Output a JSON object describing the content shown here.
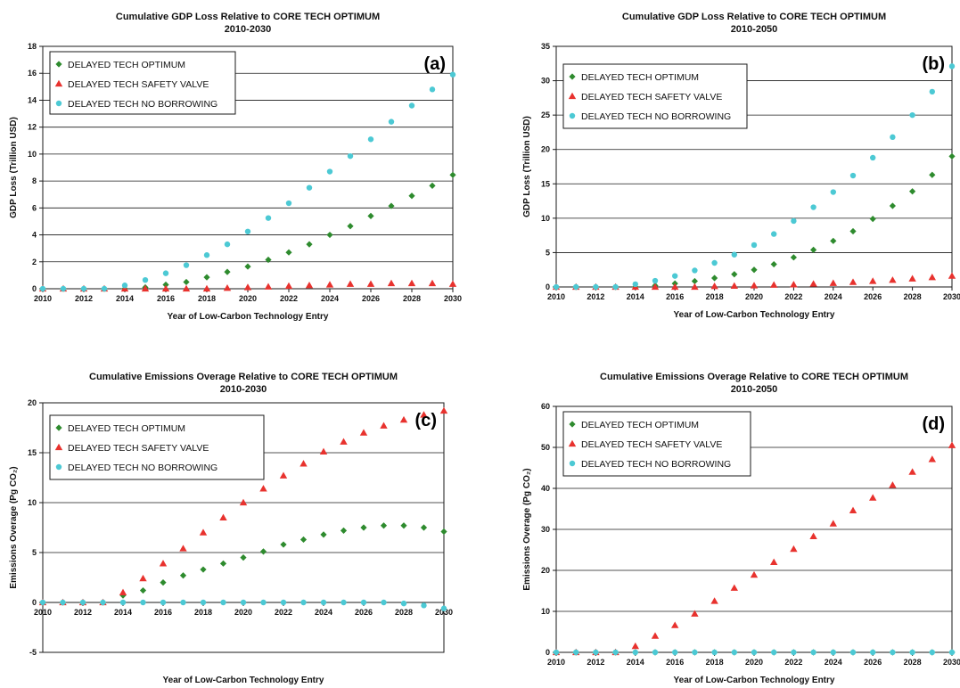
{
  "chart_data": [
    {
      "type": "scatter",
      "title": "Cumulative GDP Loss Relative to CORE TECH OPTIMUM",
      "subtitle": "2010-2030",
      "panel_label": "(a)",
      "xlabel": "Year of Low-Carbon Technology Entry",
      "ylabel": "GDP Loss (Trillion USD)",
      "xlim": [
        2010,
        2030
      ],
      "ylim": [
        0,
        18
      ],
      "xticks": [
        2010,
        2012,
        2014,
        2016,
        2018,
        2020,
        2022,
        2024,
        2026,
        2028,
        2030
      ],
      "yticks": [
        0,
        2,
        4,
        6,
        8,
        10,
        12,
        14,
        16,
        18
      ],
      "grid": "horizontal",
      "legend_position": "top-left",
      "x": [
        2010,
        2011,
        2012,
        2013,
        2014,
        2015,
        2016,
        2017,
        2018,
        2019,
        2020,
        2021,
        2022,
        2023,
        2024,
        2025,
        2026,
        2027,
        2028,
        2029,
        2030
      ],
      "series": [
        {
          "name": "DELAYED TECH OPTIMUM",
          "marker": "diamond",
          "color": "#2e8b2e",
          "values": [
            0,
            0,
            0,
            0,
            0,
            0.1,
            0.3,
            0.5,
            0.85,
            1.25,
            1.65,
            2.15,
            2.7,
            3.3,
            4.0,
            4.65,
            5.4,
            6.15,
            6.9,
            7.65,
            8.45
          ]
        },
        {
          "name": "DELAYED TECH SAFETY VALVE",
          "marker": "triangle",
          "color": "#e8322e",
          "values": [
            0,
            0,
            0,
            0,
            0,
            0,
            0,
            0,
            0,
            0.05,
            0.1,
            0.15,
            0.2,
            0.25,
            0.3,
            0.35,
            0.35,
            0.4,
            0.4,
            0.4,
            0.35
          ]
        },
        {
          "name": "DELAYED TECH NO BORROWING",
          "marker": "circle",
          "color": "#4cc9d4",
          "values": [
            0,
            0,
            0,
            0,
            0.25,
            0.65,
            1.15,
            1.75,
            2.5,
            3.3,
            4.25,
            5.25,
            6.35,
            7.5,
            8.7,
            9.85,
            11.1,
            12.4,
            13.6,
            14.8,
            15.9
          ]
        }
      ]
    },
    {
      "type": "scatter",
      "title": "Cumulative GDP Loss Relative to CORE TECH OPTIMUM",
      "subtitle": "2010-2050",
      "panel_label": "(b)",
      "xlabel": "Year of Low-Carbon Technology Entry",
      "ylabel": "GDP Loss (Trillion USD)",
      "xlim": [
        2010,
        2030
      ],
      "ylim": [
        0,
        35
      ],
      "xticks": [
        2010,
        2012,
        2014,
        2016,
        2018,
        2020,
        2022,
        2024,
        2026,
        2028,
        2030
      ],
      "yticks": [
        0,
        5,
        10,
        15,
        20,
        25,
        30,
        35
      ],
      "grid": "horizontal",
      "legend_position": "top-left",
      "x": [
        2010,
        2011,
        2012,
        2013,
        2014,
        2015,
        2016,
        2017,
        2018,
        2019,
        2020,
        2021,
        2022,
        2023,
        2024,
        2025,
        2026,
        2027,
        2028,
        2029,
        2030
      ],
      "series": [
        {
          "name": "DELAYED TECH OPTIMUM",
          "marker": "diamond",
          "color": "#2e8b2e",
          "values": [
            0,
            0,
            0,
            0,
            0,
            0.2,
            0.5,
            0.85,
            1.3,
            1.85,
            2.5,
            3.3,
            4.3,
            5.4,
            6.7,
            8.1,
            9.9,
            11.8,
            13.9,
            16.3,
            19.0
          ]
        },
        {
          "name": "DELAYED TECH SAFETY VALVE",
          "marker": "triangle",
          "color": "#e8322e",
          "values": [
            0,
            0,
            0,
            0,
            0,
            0,
            0,
            0,
            0.1,
            0.15,
            0.2,
            0.3,
            0.35,
            0.45,
            0.55,
            0.7,
            0.85,
            1.0,
            1.2,
            1.4,
            1.6
          ]
        },
        {
          "name": "DELAYED TECH NO BORROWING",
          "marker": "circle",
          "color": "#4cc9d4",
          "values": [
            0,
            0,
            0,
            0,
            0.4,
            0.9,
            1.6,
            2.4,
            3.5,
            4.7,
            6.1,
            7.7,
            9.6,
            11.6,
            13.8,
            16.2,
            18.8,
            21.8,
            25.0,
            28.4,
            32.1
          ]
        }
      ]
    },
    {
      "type": "scatter",
      "title": "Cumulative Emissions Overage Relative to CORE TECH OPTIMUM",
      "subtitle": "2010-2030",
      "panel_label": "(c)",
      "xlabel": "Year of Low-Carbon Technology Entry",
      "ylabel": "Emissions Overage (Pg CO₂)",
      "xlim": [
        2010,
        2030
      ],
      "ylim": [
        -5,
        20
      ],
      "xticks": [
        2010,
        2012,
        2014,
        2016,
        2018,
        2020,
        2022,
        2024,
        2026,
        2028,
        2030
      ],
      "yticks": [
        -5,
        0,
        5,
        10,
        15,
        20
      ],
      "grid": "horizontal",
      "legend_position": "top-left",
      "x": [
        2010,
        2011,
        2012,
        2013,
        2014,
        2015,
        2016,
        2017,
        2018,
        2019,
        2020,
        2021,
        2022,
        2023,
        2024,
        2025,
        2026,
        2027,
        2028,
        2029,
        2030
      ],
      "series": [
        {
          "name": "DELAYED TECH OPTIMUM",
          "marker": "diamond",
          "color": "#2e8b2e",
          "values": [
            0,
            0,
            0,
            0,
            0.7,
            1.2,
            2.0,
            2.7,
            3.3,
            3.9,
            4.5,
            5.1,
            5.8,
            6.3,
            6.8,
            7.2,
            7.5,
            7.7,
            7.7,
            7.5,
            7.1
          ]
        },
        {
          "name": "DELAYED TECH SAFETY VALVE",
          "marker": "triangle",
          "color": "#e8322e",
          "values": [
            0,
            0,
            0,
            0,
            1.0,
            2.4,
            3.9,
            5.4,
            7.0,
            8.5,
            10.0,
            11.4,
            12.7,
            13.9,
            15.1,
            16.1,
            17.0,
            17.7,
            18.3,
            18.8,
            19.2
          ]
        },
        {
          "name": "DELAYED TECH NO BORROWING",
          "marker": "circle",
          "color": "#4cc9d4",
          "values": [
            0,
            0,
            0,
            0,
            0,
            0,
            0,
            0,
            0,
            0,
            0,
            0,
            0,
            0,
            0,
            0,
            0,
            0,
            -0.1,
            -0.3,
            -0.6
          ]
        }
      ]
    },
    {
      "type": "scatter",
      "title": "Cumulative Emissions Overage Relative to CORE TECH OPTIMUM",
      "subtitle": "2010-2050",
      "panel_label": "(d)",
      "xlabel": "Year of Low-Carbon Technology Entry",
      "ylabel": "Emissions Overage (Pg CO₂)",
      "xlim": [
        2010,
        2030
      ],
      "ylim": [
        0,
        60
      ],
      "xticks": [
        2010,
        2012,
        2014,
        2016,
        2018,
        2020,
        2022,
        2024,
        2026,
        2028,
        2030
      ],
      "yticks": [
        0,
        10,
        20,
        30,
        40,
        50,
        60
      ],
      "grid": "horizontal",
      "legend_position": "top-left",
      "x": [
        2010,
        2011,
        2012,
        2013,
        2014,
        2015,
        2016,
        2017,
        2018,
        2019,
        2020,
        2021,
        2022,
        2023,
        2024,
        2025,
        2026,
        2027,
        2028,
        2029,
        2030
      ],
      "series": [
        {
          "name": "DELAYED TECH OPTIMUM",
          "marker": "diamond",
          "color": "#2e8b2e",
          "values": [
            0,
            0,
            0,
            0,
            0,
            0,
            0,
            0,
            0,
            0,
            0,
            0,
            0,
            0,
            0,
            0,
            0,
            0,
            0,
            0,
            0
          ]
        },
        {
          "name": "DELAYED TECH SAFETY VALVE",
          "marker": "triangle",
          "color": "#e8322e",
          "values": [
            0,
            0,
            0,
            0,
            1.5,
            4.0,
            6.6,
            9.4,
            12.5,
            15.7,
            18.9,
            22.0,
            25.2,
            28.3,
            31.4,
            34.6,
            37.7,
            40.8,
            44.0,
            47.1,
            50.5
          ]
        },
        {
          "name": "DELAYED TECH NO BORROWING",
          "marker": "circle",
          "color": "#4cc9d4",
          "values": [
            0,
            0,
            0,
            0,
            0,
            0,
            0,
            0,
            0,
            0,
            0,
            0,
            0,
            0,
            0,
            0,
            0,
            0,
            0,
            0,
            0
          ]
        }
      ]
    }
  ]
}
